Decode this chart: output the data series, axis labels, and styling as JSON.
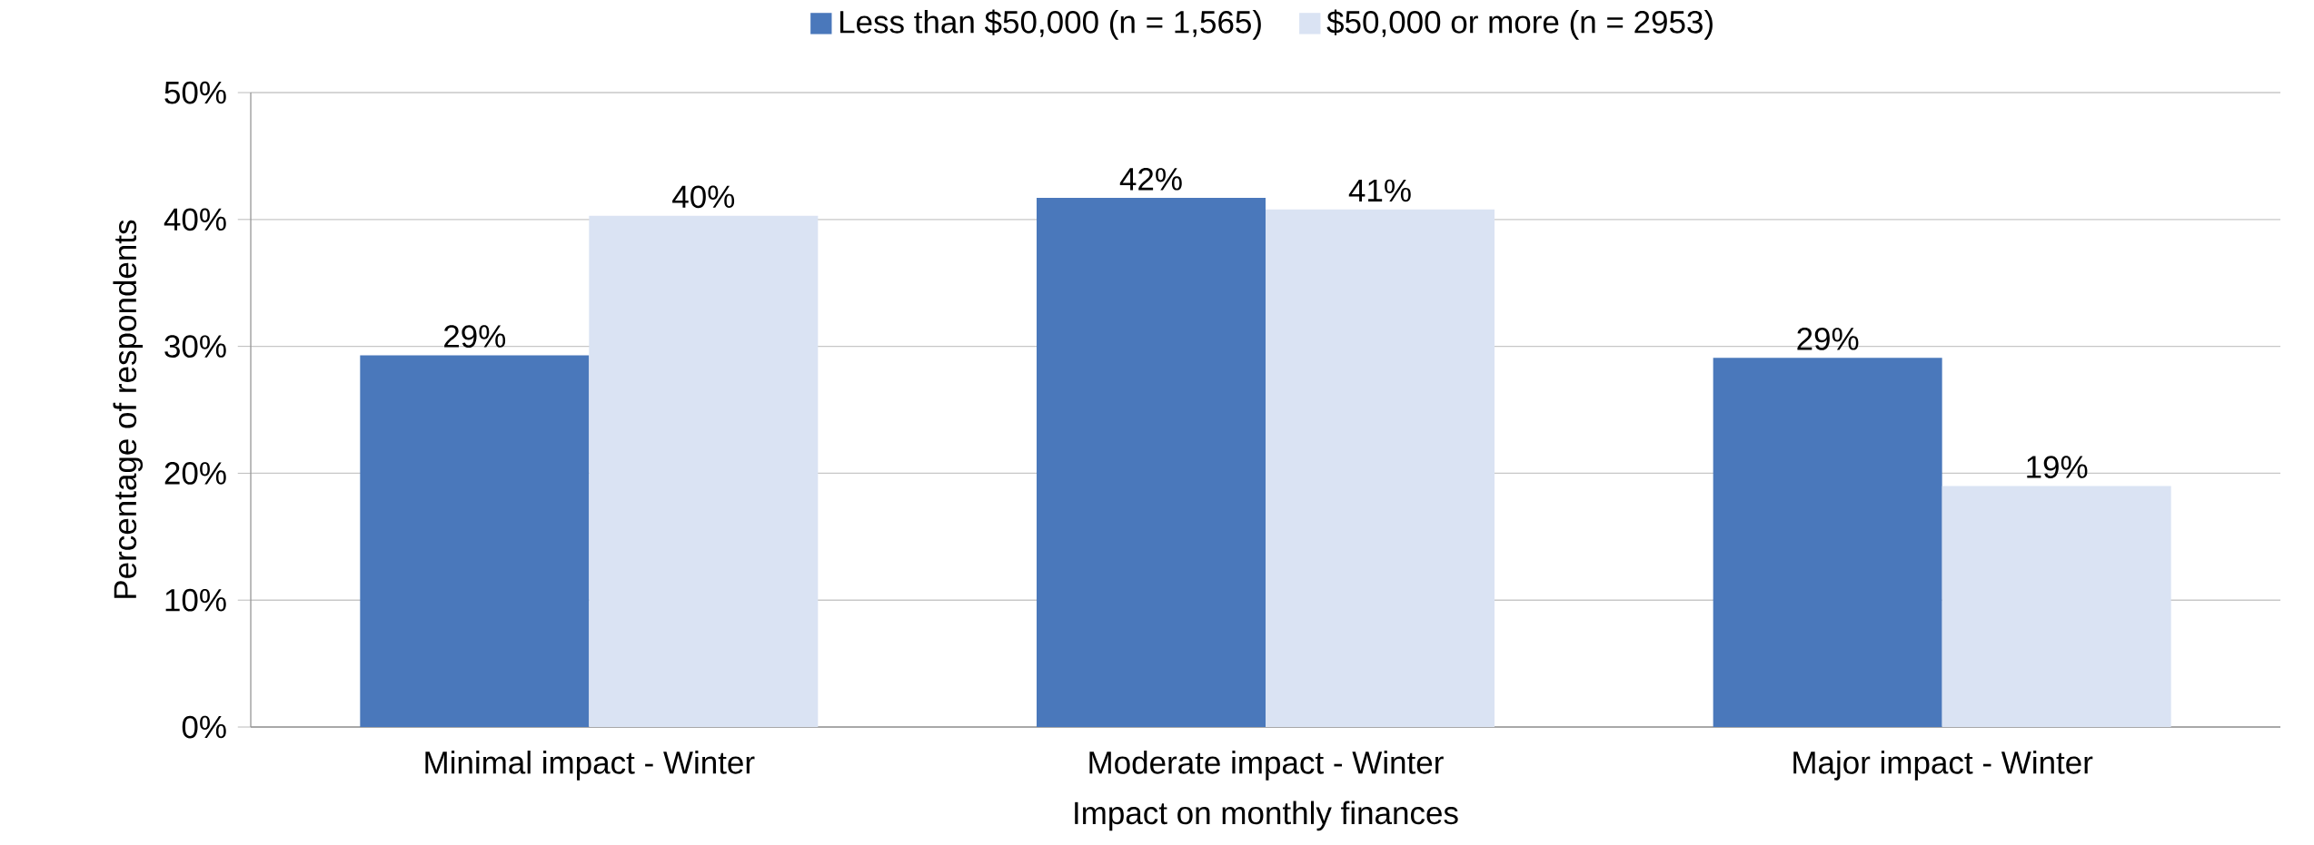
{
  "chart_data": {
    "type": "bar",
    "xlabel": "Impact on monthly finances",
    "ylabel": "Percentage of respondents",
    "categories": [
      "Minimal impact - Winter",
      "Moderate impact - Winter",
      "Major impact - Winter"
    ],
    "series": [
      {
        "name": "Less than $50,000 (n = 1,565)",
        "color": "#4a78bb",
        "values": [
          29.3,
          41.7,
          29.1
        ],
        "value_labels": [
          "29%",
          "42%",
          "29%"
        ]
      },
      {
        "name": "$50,000 or more (n = 2953)",
        "color": "#dae3f3",
        "values": [
          40.3,
          40.8,
          19.0
        ],
        "value_labels": [
          "40%",
          "41%",
          "19%"
        ]
      }
    ],
    "ylim": [
      0,
      50
    ],
    "yticks": [
      {
        "value": 0,
        "label": "0%"
      },
      {
        "value": 10,
        "label": "10%"
      },
      {
        "value": 20,
        "label": "20%"
      },
      {
        "value": 30,
        "label": "30%"
      },
      {
        "value": 40,
        "label": "40%"
      },
      {
        "value": 50,
        "label": "50%"
      }
    ],
    "grid": "y",
    "legend": "top"
  }
}
